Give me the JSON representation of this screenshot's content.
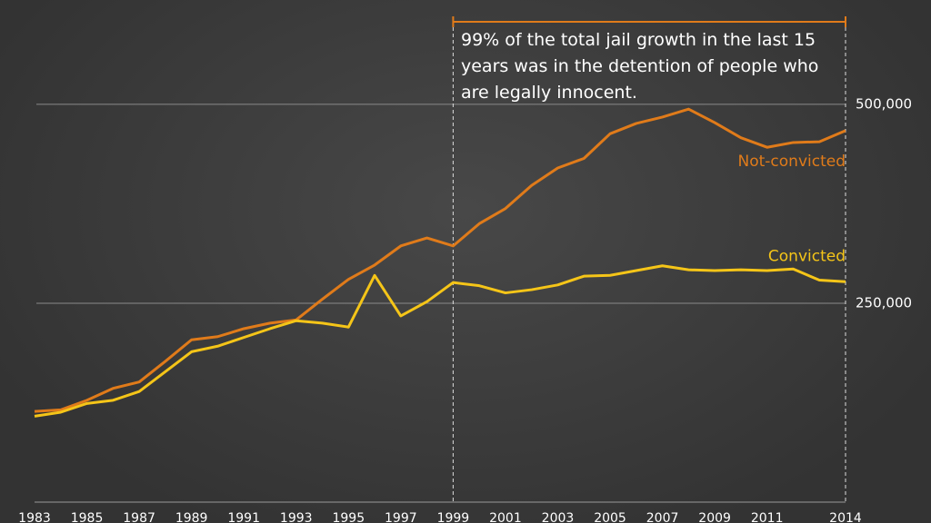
{
  "chart_data": {
    "type": "line",
    "x": [
      1983,
      1984,
      1985,
      1986,
      1987,
      1988,
      1989,
      1990,
      1991,
      1992,
      1993,
      1994,
      1995,
      1996,
      1997,
      1998,
      1999,
      2000,
      2001,
      2002,
      2003,
      2004,
      2005,
      2006,
      2007,
      2008,
      2009,
      2010,
      2011,
      2012,
      2013,
      2014
    ],
    "series": [
      {
        "name": "Not-convicted",
        "color": "#e07b1a",
        "values": [
          114000,
          116000,
          128000,
          143000,
          151000,
          177000,
          204000,
          208000,
          218000,
          225000,
          229000,
          255000,
          280000,
          298000,
          322000,
          332000,
          322000,
          350000,
          369000,
          398000,
          420000,
          432000,
          463000,
          476000,
          484000,
          494000,
          477000,
          458000,
          446000,
          452000,
          453000,
          467000
        ]
      },
      {
        "name": "Convicted",
        "color": "#f5c518",
        "values": [
          108000,
          113000,
          124000,
          128000,
          139000,
          164000,
          189000,
          196000,
          207000,
          218000,
          228000,
          225000,
          220000,
          285000,
          234000,
          252000,
          276000,
          272000,
          263000,
          267000,
          273000,
          284000,
          285000,
          291000,
          297000,
          292000,
          291000,
          292000,
          291000,
          293000,
          279000,
          277000
        ]
      }
    ],
    "xlim": [
      1983,
      2014
    ],
    "xticks": [
      1983,
      1985,
      1987,
      1989,
      1991,
      1993,
      1995,
      1997,
      1999,
      2001,
      2003,
      2005,
      2007,
      2009,
      2011,
      2014
    ],
    "ylim": [
      0,
      630000
    ],
    "yticks": [
      {
        "value": 250000,
        "label": "250,000"
      },
      {
        "value": 500000,
        "label": "500,000"
      }
    ],
    "grid": true,
    "annotation": {
      "text": "99% of the total jail growth in the last 15 years was in the detention of people who are legally innocent.",
      "x_range": [
        1999,
        2014
      ]
    }
  }
}
